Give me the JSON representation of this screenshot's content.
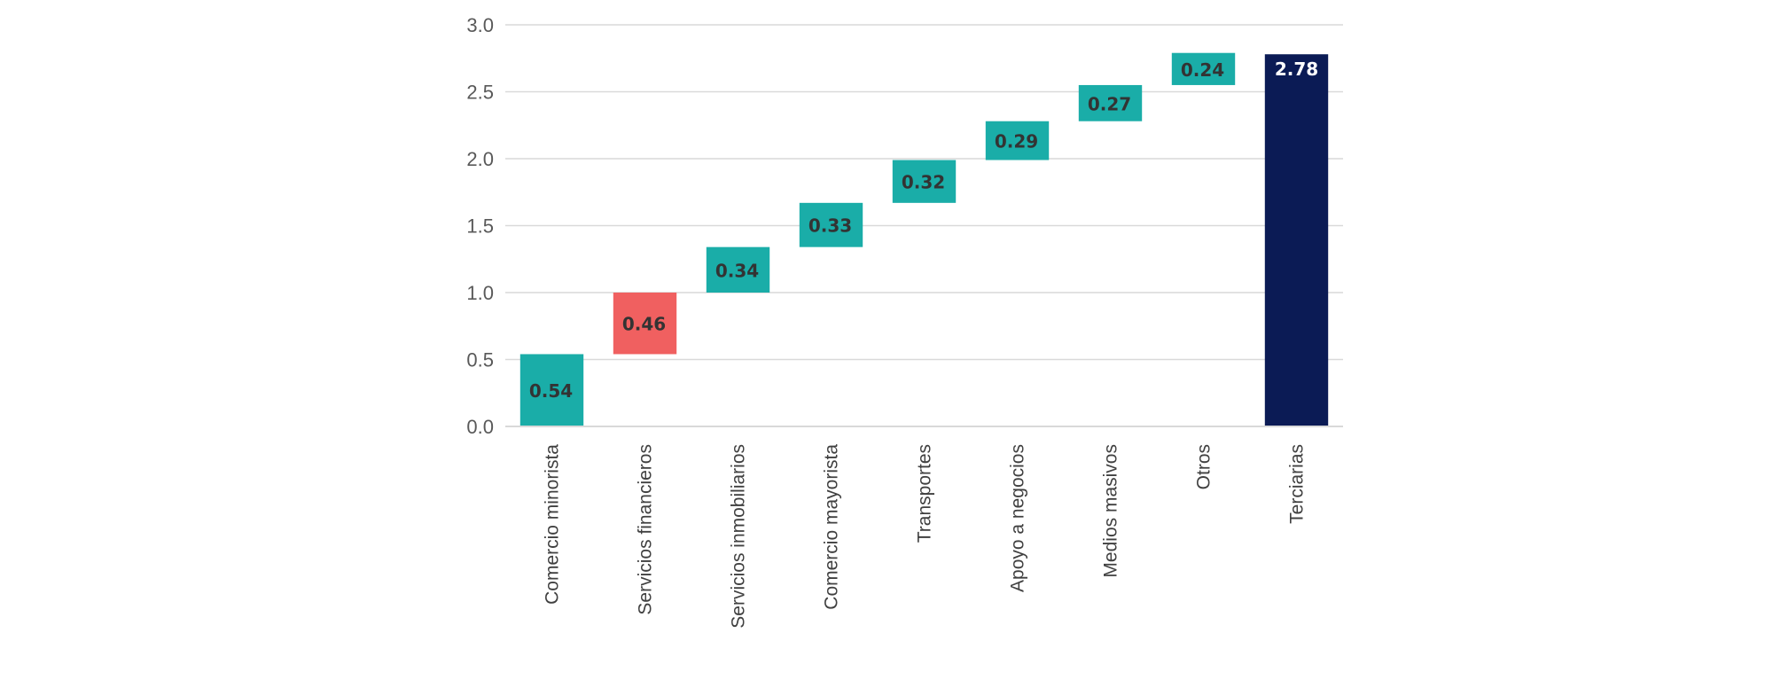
{
  "chart_data": {
    "type": "bar",
    "subtype": "waterfall",
    "title": "",
    "xlabel": "",
    "ylabel": "",
    "ylim": [
      0,
      3.0
    ],
    "yticks": [
      "0.0",
      "0.5",
      "1.0",
      "1.5",
      "2.0",
      "2.5",
      "3.0"
    ],
    "grid": true,
    "categories": [
      "Comercio minorista",
      "Servicios financieros",
      "Servicios inmobiliarios",
      "Comercio mayorista",
      "Transportes",
      "Apoyo a negocios",
      "Medios masivos",
      "Otros",
      "Terciarias"
    ],
    "values": [
      0.54,
      0.46,
      0.34,
      0.33,
      0.32,
      0.29,
      0.27,
      0.24,
      2.78
    ],
    "value_labels": [
      "0.54",
      "0.46",
      "0.34",
      "0.33",
      "0.32",
      "0.29",
      "0.27",
      "0.24",
      "2.78"
    ],
    "bar_kinds": [
      "increase",
      "highlight",
      "increase",
      "increase",
      "increase",
      "increase",
      "increase",
      "increase",
      "total"
    ],
    "colors": {
      "increase": "#1aada8",
      "highlight": "#f06060",
      "total": "#0b1b55",
      "grid": "#d9d9d9",
      "label_dark": "#333333",
      "label_light": "#ffffff"
    }
  }
}
